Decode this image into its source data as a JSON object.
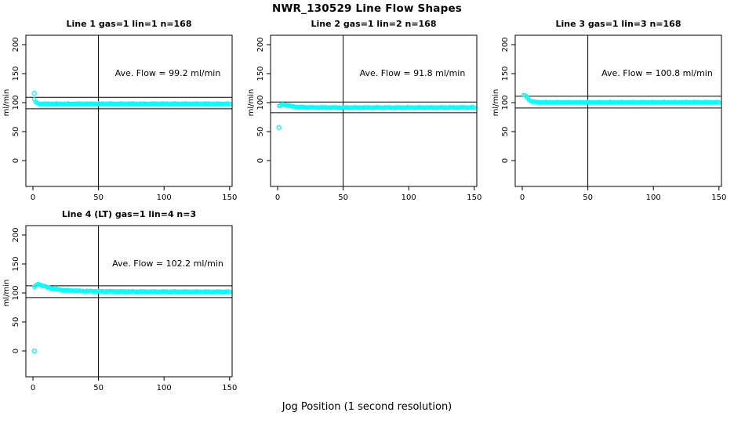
{
  "figure": {
    "title": "NWR_130529  Line Flow Shapes",
    "xlabel": "Jog Position (1 second resolution)",
    "ylabel": "ml/min",
    "point_color": "#00ffff",
    "axis_color": "#000000",
    "background_color": "#ffffff"
  },
  "chart_data": [
    {
      "type": "scatter",
      "title": "Line 1 gas=1 lin=1 n=168",
      "annotation": "Ave. Flow =  99.2  ml/min",
      "ave_flow": 99.2,
      "n": 168,
      "gas": 1,
      "lin": 1,
      "ylabel": "ml/min",
      "xlim": [
        0,
        150
      ],
      "ylim": [
        0,
        200
      ],
      "xticks": [
        0,
        50,
        100,
        150
      ],
      "yticks": [
        0,
        50,
        100,
        150,
        200
      ],
      "vline_x": 50,
      "hlines": [
        109.1,
        89.3
      ],
      "series_keypoints": [
        [
          1,
          105
        ],
        [
          2,
          101.5
        ],
        [
          3,
          99.5
        ],
        [
          4,
          98.6
        ],
        [
          5,
          98.2
        ],
        [
          6,
          98.0
        ],
        [
          10,
          97.9
        ],
        [
          20,
          97.9
        ],
        [
          50,
          98.0
        ],
        [
          100,
          98.0
        ],
        [
          150,
          98.0
        ]
      ],
      "outliers": [
        [
          1,
          116
        ]
      ]
    },
    {
      "type": "scatter",
      "title": "Line 2 gas=1 lin=2 n=168",
      "annotation": "Ave. Flow =  91.8  ml/min",
      "ave_flow": 91.8,
      "n": 168,
      "gas": 1,
      "lin": 2,
      "ylabel": "ml/min",
      "xlim": [
        0,
        150
      ],
      "ylim": [
        0,
        200
      ],
      "xticks": [
        0,
        50,
        100,
        150
      ],
      "yticks": [
        0,
        50,
        100,
        150,
        200
      ],
      "vline_x": 50,
      "hlines": [
        101.0,
        82.6
      ],
      "series_keypoints": [
        [
          1,
          93.5
        ],
        [
          2,
          95.5
        ],
        [
          3,
          96.6
        ],
        [
          4,
          97.0
        ],
        [
          5,
          96.7
        ],
        [
          6,
          96.2
        ],
        [
          8,
          95.2
        ],
        [
          10,
          94.2
        ],
        [
          12,
          93.4
        ],
        [
          15,
          92.6
        ],
        [
          20,
          92.0
        ],
        [
          25,
          91.7
        ],
        [
          30,
          91.6
        ],
        [
          50,
          91.5
        ],
        [
          100,
          91.5
        ],
        [
          150,
          91.6
        ]
      ],
      "outliers": [
        [
          1,
          57
        ]
      ]
    },
    {
      "type": "scatter",
      "title": "Line 3 gas=1 lin=3 n=168",
      "annotation": "Ave. Flow =  100.8  ml/min",
      "ave_flow": 100.8,
      "n": 168,
      "gas": 1,
      "lin": 3,
      "ylabel": "ml/min",
      "xlim": [
        0,
        150
      ],
      "ylim": [
        0,
        200
      ],
      "xticks": [
        0,
        50,
        100,
        150
      ],
      "yticks": [
        0,
        50,
        100,
        150,
        200
      ],
      "vline_x": 50,
      "hlines": [
        110.9,
        90.7
      ],
      "series_keypoints": [
        [
          1,
          112.5
        ],
        [
          2,
          112.8
        ],
        [
          3,
          111.0
        ],
        [
          4,
          108.0
        ],
        [
          5,
          105.5
        ],
        [
          6,
          103.8
        ],
        [
          7,
          102.6
        ],
        [
          8,
          101.8
        ],
        [
          10,
          101.1
        ],
        [
          12,
          100.8
        ],
        [
          15,
          100.6
        ],
        [
          20,
          100.5
        ],
        [
          30,
          100.5
        ],
        [
          50,
          100.5
        ],
        [
          100,
          100.6
        ],
        [
          150,
          100.6
        ]
      ],
      "outliers": []
    },
    {
      "type": "scatter",
      "title": "Line 4 (LT) gas=1 lin=4 n=3",
      "annotation": "Ave. Flow =  102.2  ml/min",
      "ave_flow": 102.2,
      "n": 3,
      "gas": 1,
      "lin": 4,
      "ylabel": "ml/min",
      "xlim": [
        0,
        150
      ],
      "ylim": [
        0,
        200
      ],
      "xticks": [
        0,
        50,
        100,
        150
      ],
      "yticks": [
        0,
        50,
        100,
        150,
        200
      ],
      "vline_x": 50,
      "hlines": [
        112.4,
        92.0
      ],
      "series_keypoints": [
        [
          1,
          110.0
        ],
        [
          2,
          112.5
        ],
        [
          3,
          114.2
        ],
        [
          4,
          115.0
        ],
        [
          5,
          114.8
        ],
        [
          6,
          114.0
        ],
        [
          8,
          112.3
        ],
        [
          10,
          110.6
        ],
        [
          12,
          109.2
        ],
        [
          15,
          107.5
        ],
        [
          20,
          105.8
        ],
        [
          25,
          104.8
        ],
        [
          30,
          104.1
        ],
        [
          40,
          103.3
        ],
        [
          50,
          102.9
        ],
        [
          60,
          102.7
        ],
        [
          75,
          102.5
        ],
        [
          100,
          102.3
        ],
        [
          125,
          102.2
        ],
        [
          150,
          102.2
        ]
      ],
      "outliers": [
        [
          1,
          0
        ]
      ]
    }
  ]
}
